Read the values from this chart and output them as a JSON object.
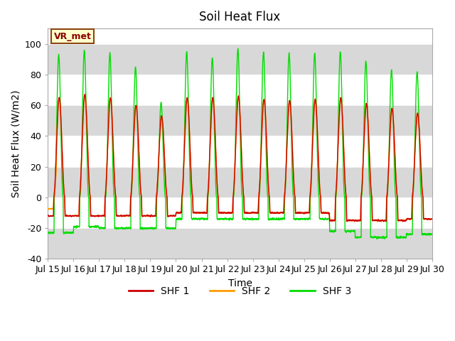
{
  "title": "Soil Heat Flux",
  "xlabel": "Time",
  "ylabel": "Soil Heat Flux (W/m2)",
  "ylim": [
    -40,
    110
  ],
  "yticks": [
    -40,
    -20,
    0,
    20,
    40,
    60,
    80,
    100
  ],
  "start_day": 15,
  "end_day": 30,
  "colors": {
    "SHF 1": "#cc0000",
    "SHF 2": "#ff9900",
    "SHF 3": "#00dd00"
  },
  "legend_labels": [
    "SHF 1",
    "SHF 2",
    "SHF 3"
  ],
  "vrmet_label": "VR_met",
  "background_color": "#ffffff",
  "band_colors": [
    "#d8d8d8",
    "#ffffff"
  ],
  "title_fontsize": 12,
  "axis_fontsize": 10,
  "tick_fontsize": 9,
  "peaks3": [
    93,
    96,
    94,
    85,
    62,
    95,
    91,
    97,
    95,
    94,
    94,
    95,
    89,
    83,
    82
  ],
  "peaks1": [
    65,
    67,
    65,
    60,
    53,
    65,
    65,
    66,
    64,
    63,
    64,
    65,
    61,
    58,
    55
  ],
  "troughs3": [
    -23,
    -19,
    -20,
    -20,
    -20,
    -14,
    -14,
    -14,
    -14,
    -14,
    -14,
    -22,
    -26,
    -26,
    -24
  ],
  "troughs1": [
    -12,
    -12,
    -12,
    -12,
    -12,
    -10,
    -10,
    -10,
    -10,
    -10,
    -10,
    -15,
    -15,
    -15,
    -14
  ]
}
